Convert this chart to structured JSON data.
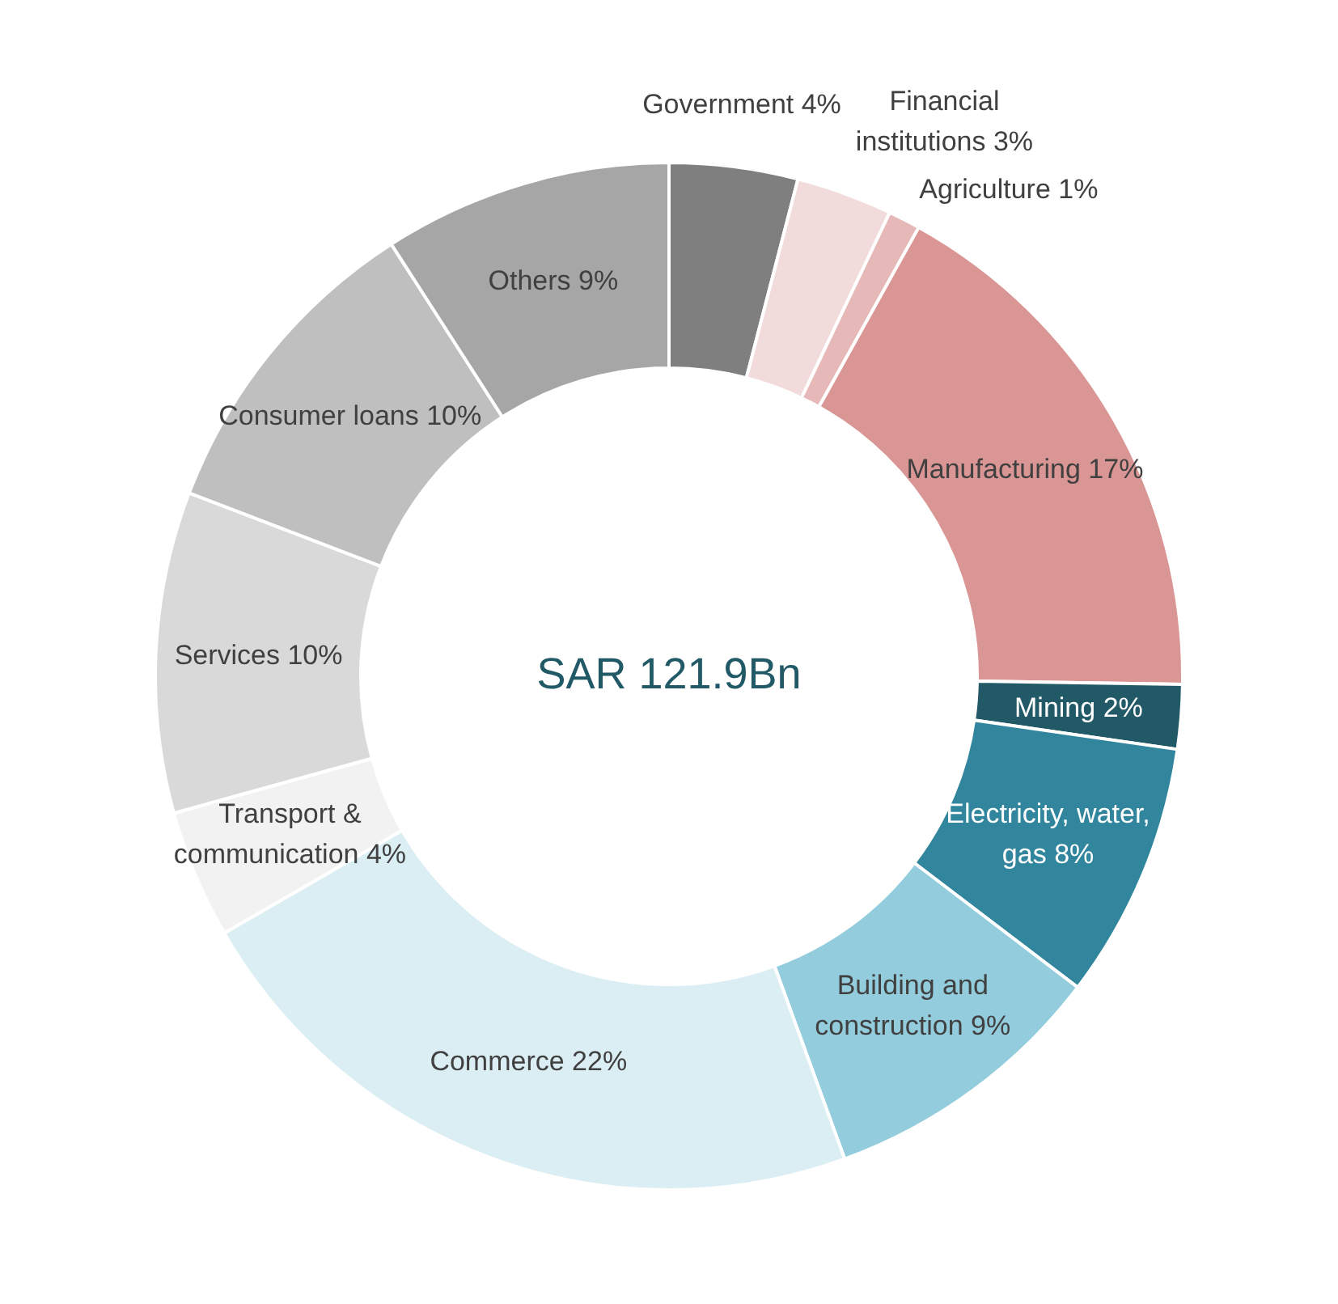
{
  "chart_data": {
    "type": "donut",
    "title": "SAR 121.9Bn",
    "categories": [
      "Government",
      "Financial institutions",
      "Agriculture",
      "Manufacturing",
      "Mining",
      "Electricity, water, gas",
      "Building and construction",
      "Commerce",
      "Transport & communication",
      "Services",
      "Consumer loans",
      "Others"
    ],
    "values": [
      4,
      3,
      1,
      17,
      2,
      8,
      9,
      22,
      4,
      10,
      10,
      9
    ],
    "value_labels": [
      "4%",
      "3%",
      "1%",
      "17%",
      "2%",
      "8%",
      "9%",
      "22%",
      "4%",
      "10%",
      "10%",
      "9%"
    ],
    "colors": [
      "#7f7f7f",
      "#f2dcdb",
      "#e6b9b8",
      "#d99694",
      "#215967",
      "#31859c",
      "#93cddd",
      "#dbeef3",
      "#f2f2f2",
      "#d9d9d9",
      "#bfbfbf",
      "#a6a6a6"
    ],
    "legend": false
  }
}
